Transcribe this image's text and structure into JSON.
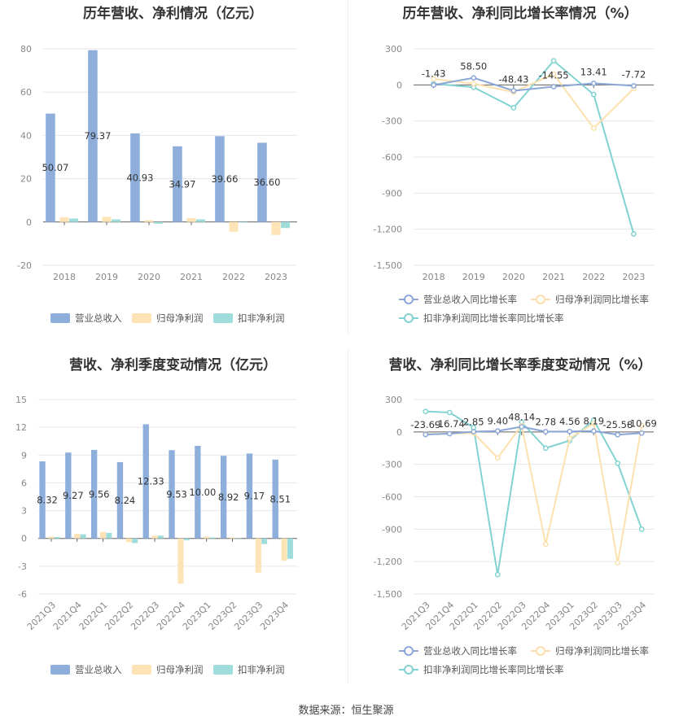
{
  "source_label": "数据来源：恒生聚源",
  "colors": {
    "revenue": "#8eaedb",
    "net_profit": "#fde3b5",
    "deducted_profit": "#9fdcdc",
    "line_revenue": "#8aa7d8",
    "line_net": "#fce0ad",
    "line_deducted": "#82d2d2"
  },
  "chart_data": [
    {
      "id": "annual-bar",
      "type": "bar",
      "title": "历年营收、净利情况（亿元）",
      "categories": [
        "2018",
        "2019",
        "2020",
        "2021",
        "2022",
        "2023"
      ],
      "ylim": [
        -20,
        80
      ],
      "yticks": [
        -20,
        0,
        20,
        40,
        60,
        80
      ],
      "series": [
        {
          "name": "营业总收入",
          "values": [
            50.07,
            79.37,
            40.93,
            34.97,
            39.66,
            36.6
          ],
          "labels": [
            "50.07",
            "79.37",
            "40.93",
            "34.97",
            "39.66",
            "36.60"
          ]
        },
        {
          "name": "归母净利润",
          "values": [
            2.2,
            2.4,
            0.8,
            1.8,
            -4.5,
            -6.0
          ]
        },
        {
          "name": "扣非净利润",
          "values": [
            1.6,
            1.2,
            -0.8,
            1.2,
            -0.3,
            -2.8
          ]
        }
      ],
      "legend": "bottom"
    },
    {
      "id": "annual-line",
      "type": "line",
      "title": "历年营收、净利同比增长率情况（%）",
      "categories": [
        "2018",
        "2019",
        "2020",
        "2021",
        "2022",
        "2023"
      ],
      "ylim": [
        -1500,
        300
      ],
      "yticks": [
        -1500,
        -1200,
        -900,
        -600,
        -300,
        0,
        300
      ],
      "series": [
        {
          "name": "营业总收入同比增长率",
          "values": [
            -1.43,
            58.5,
            -48.43,
            -14.55,
            13.41,
            -7.72
          ],
          "labels": [
            "-1.43",
            "58.50",
            "-48.43",
            "-14.55",
            "13.41",
            "-7.72"
          ]
        },
        {
          "name": "归母净利润同比增长率",
          "values": [
            50,
            10,
            -60,
            90,
            -360,
            -30
          ]
        },
        {
          "name": "扣非净利润同比增长率同比增长率",
          "values": [
            10,
            -20,
            -190,
            200,
            -80,
            -1240
          ]
        }
      ],
      "legend": "bottom"
    },
    {
      "id": "quarterly-bar",
      "type": "bar",
      "title": "营收、净利季度变动情况（亿元）",
      "categories": [
        "2021Q3",
        "2021Q4",
        "2022Q1",
        "2022Q2",
        "2022Q3",
        "2022Q4",
        "2023Q1",
        "2023Q2",
        "2023Q3",
        "2023Q4"
      ],
      "ylim": [
        -6,
        15
      ],
      "yticks": [
        -6,
        -3,
        0,
        3,
        6,
        9,
        12,
        15
      ],
      "series": [
        {
          "name": "营业总收入",
          "values": [
            8.32,
            9.27,
            9.56,
            8.24,
            12.33,
            9.53,
            10.0,
            8.92,
            9.17,
            8.51
          ],
          "labels": [
            "8.32",
            "9.27",
            "9.56",
            "8.24",
            "12.33",
            "9.53",
            "10.00",
            "8.92",
            "9.17",
            "8.51"
          ]
        },
        {
          "name": "归母净利润",
          "values": [
            0.2,
            0.5,
            0.7,
            -0.4,
            0.3,
            -4.9,
            0.2,
            0.1,
            -3.7,
            -2.4
          ]
        },
        {
          "name": "扣非净利润",
          "values": [
            0.15,
            0.45,
            0.6,
            -0.5,
            0.3,
            -0.2,
            0.1,
            0.05,
            -0.6,
            -2.2
          ]
        }
      ],
      "legend": "bottom"
    },
    {
      "id": "quarterly-line",
      "type": "line",
      "title": "营收、净利同比增长率季度变动情况（%）",
      "categories": [
        "2021Q3",
        "2021Q4",
        "2022Q1",
        "2022Q2",
        "2022Q3",
        "2022Q4",
        "2023Q1",
        "2023Q2",
        "2023Q3",
        "2023Q4"
      ],
      "ylim": [
        -1500,
        300
      ],
      "yticks": [
        -1500,
        -1200,
        -900,
        -600,
        -300,
        0,
        300
      ],
      "series": [
        {
          "name": "营业总收入同比增长率",
          "values": [
            -23.69,
            -16.74,
            2.85,
            9.4,
            48.14,
            2.78,
            4.56,
            8.19,
            -25.58,
            -10.69
          ],
          "labels": [
            "-23.69",
            "-16.74",
            "2.85",
            "9.40",
            "48.14",
            "2.78",
            "4.56",
            "8.19",
            "-25.58",
            "-10.69"
          ]
        },
        {
          "name": "归母净利润同比增长率",
          "values": [
            -20,
            -15,
            -10,
            -240,
            60,
            -1040,
            -60,
            80,
            -1210,
            60
          ]
        },
        {
          "name": "扣非净利润同比增长率同比增长率",
          "values": [
            190,
            180,
            40,
            -1320,
            90,
            -150,
            -80,
            110,
            -290,
            -900
          ]
        }
      ],
      "legend": "bottom"
    }
  ]
}
